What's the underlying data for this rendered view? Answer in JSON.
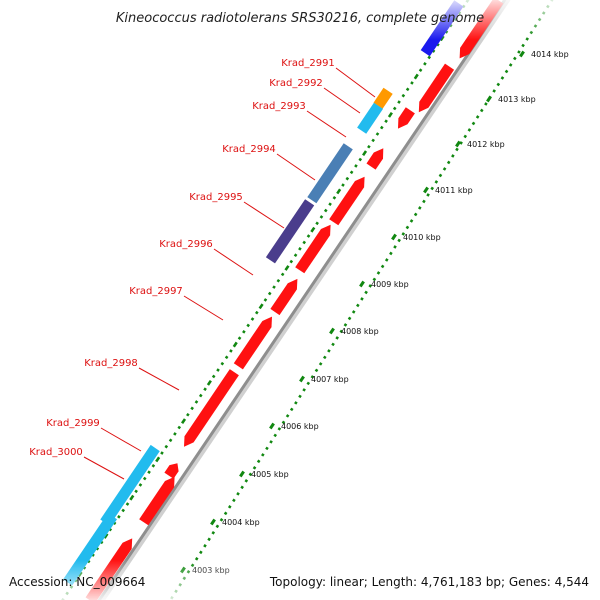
{
  "title": "Kineococcus radiotolerans SRS30216, complete genome",
  "footer": {
    "accession": "Accession: NC_009664",
    "summary": "Topology: linear; Length: 4,761,183 bp; Genes: 4,544"
  },
  "colors": {
    "forward_gene": "#ff1111",
    "gene_blue": "#1a1aee",
    "gene_cyan": "#22bbee",
    "gene_orange": "#ff9900",
    "gene_steel": "#4a7fb5",
    "gene_purple": "#4a3d8c",
    "gene_label": "#dd1111",
    "backbone": "#999999",
    "tick": "#118811"
  },
  "gene_labels": [
    "Krad_2991",
    "Krad_2992",
    "Krad_2993",
    "Krad_2994",
    "Krad_2995",
    "Krad_2996",
    "Krad_2997",
    "Krad_2998",
    "Krad_2999",
    "Krad_3000"
  ],
  "kbp_ticks": [
    "4003 kbp",
    "4004 kbp",
    "4005 kbp",
    "4006 kbp",
    "4007 kbp",
    "4008 kbp",
    "4009 kbp",
    "4010 kbp",
    "4011 kbp",
    "4012 kbp",
    "4013 kbp",
    "4014 kbp"
  ]
}
